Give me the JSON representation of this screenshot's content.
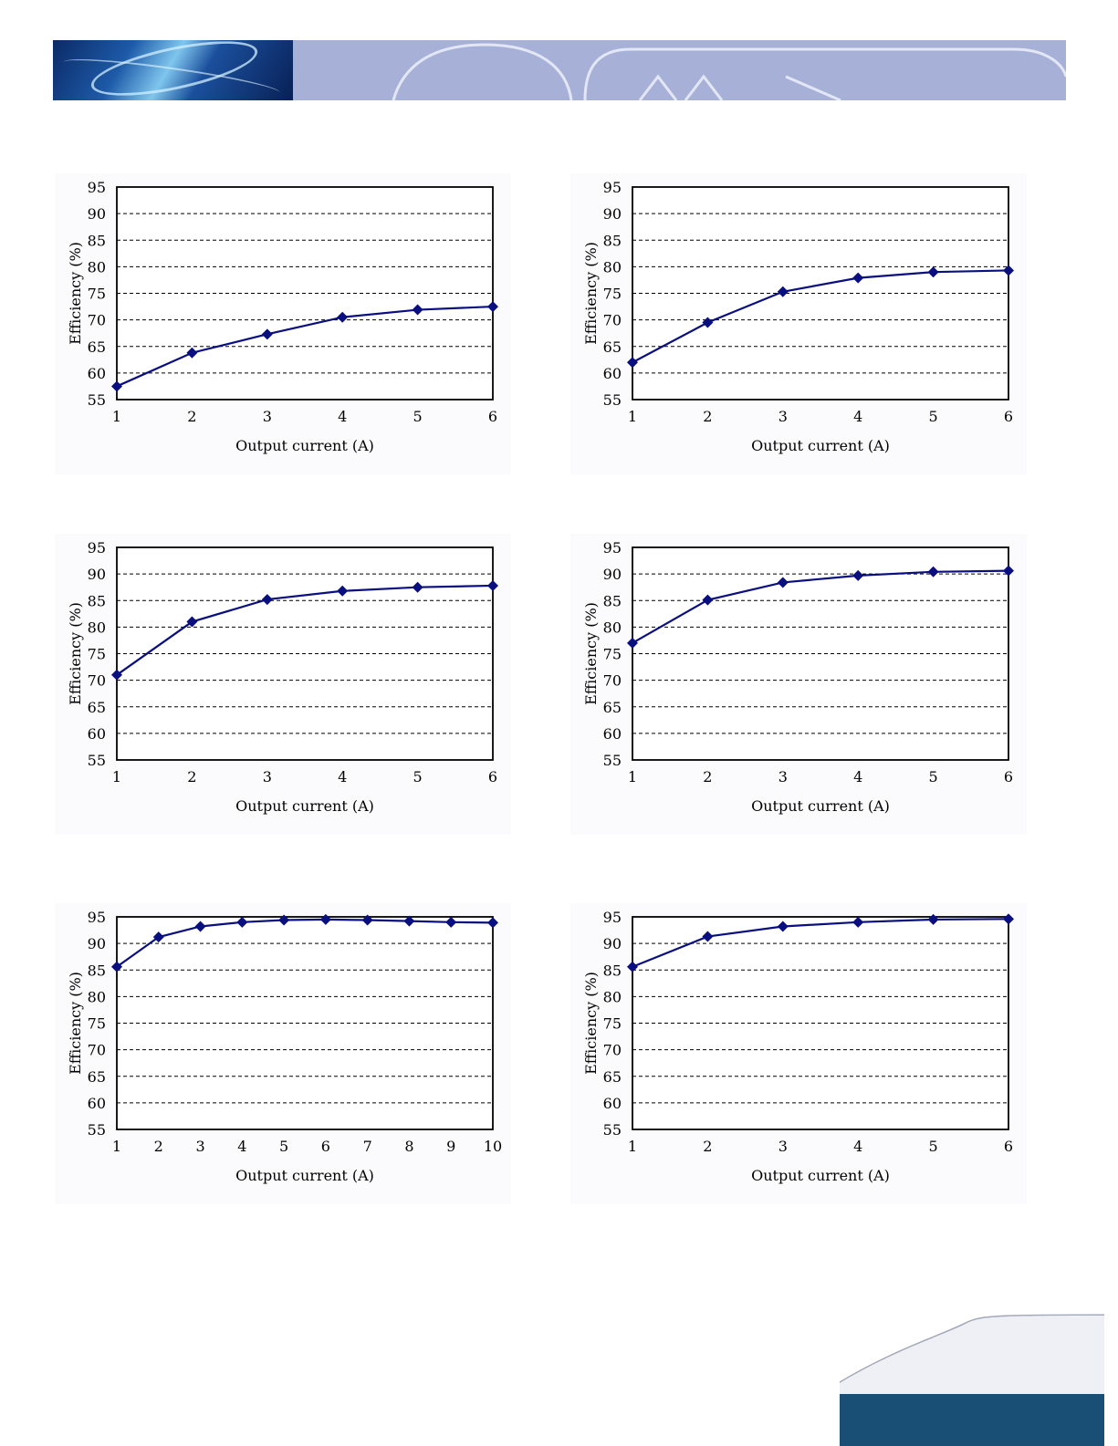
{
  "colors": {
    "banner": "#a7b1d8",
    "banner_line": "#e3e7f5",
    "series": "#0a0f80",
    "footer_bar": "#1a4f75"
  },
  "chart_data": [
    {
      "type": "line",
      "xlabel": "Output current (A)",
      "ylabel": "Efficiency (%)",
      "xlim": [
        1,
        6
      ],
      "ylim": [
        55,
        95
      ],
      "xticks": [
        1,
        2,
        3,
        4,
        5,
        6
      ],
      "yticks": [
        55,
        60,
        65,
        70,
        75,
        80,
        85,
        90,
        95
      ],
      "grid": "horizontal-dashed",
      "x": [
        1,
        2,
        3,
        4,
        5,
        6
      ],
      "series": [
        {
          "values": [
            57.5,
            63.8,
            67.3,
            70.5,
            71.9,
            72.5
          ]
        }
      ]
    },
    {
      "type": "line",
      "xlabel": "Output current (A)",
      "ylabel": "Efficiency (%)",
      "xlim": [
        1,
        6
      ],
      "ylim": [
        55,
        95
      ],
      "xticks": [
        1,
        2,
        3,
        4,
        5,
        6
      ],
      "yticks": [
        55,
        60,
        65,
        70,
        75,
        80,
        85,
        90,
        95
      ],
      "grid": "horizontal-dashed",
      "x": [
        1,
        2,
        3,
        4,
        5,
        6
      ],
      "series": [
        {
          "values": [
            62.0,
            69.5,
            75.3,
            77.9,
            79.0,
            79.3
          ]
        }
      ]
    },
    {
      "type": "line",
      "xlabel": "Output current (A)",
      "ylabel": "Efficiency (%)",
      "xlim": [
        1,
        6
      ],
      "ylim": [
        55,
        95
      ],
      "xticks": [
        1,
        2,
        3,
        4,
        5,
        6
      ],
      "yticks": [
        55,
        60,
        65,
        70,
        75,
        80,
        85,
        90,
        95
      ],
      "grid": "horizontal-dashed",
      "x": [
        1,
        2,
        3,
        4,
        5,
        6
      ],
      "series": [
        {
          "values": [
            71.0,
            81.0,
            85.2,
            86.8,
            87.5,
            87.8
          ]
        }
      ]
    },
    {
      "type": "line",
      "xlabel": "Output current (A)",
      "ylabel": "Efficiency (%)",
      "xlim": [
        1,
        6
      ],
      "ylim": [
        55,
        95
      ],
      "xticks": [
        1,
        2,
        3,
        4,
        5,
        6
      ],
      "yticks": [
        55,
        60,
        65,
        70,
        75,
        80,
        85,
        90,
        95
      ],
      "grid": "horizontal-dashed",
      "x": [
        1,
        2,
        3,
        4,
        5,
        6
      ],
      "series": [
        {
          "values": [
            77.0,
            85.1,
            88.4,
            89.7,
            90.4,
            90.6
          ]
        }
      ]
    },
    {
      "type": "line",
      "xlabel": "Output current (A)",
      "ylabel": "Efficiency (%)",
      "xlim": [
        1,
        10
      ],
      "ylim": [
        55,
        95
      ],
      "xticks": [
        1,
        2,
        3,
        4,
        5,
        6,
        7,
        8,
        9,
        10
      ],
      "yticks": [
        55,
        60,
        65,
        70,
        75,
        80,
        85,
        90,
        95
      ],
      "grid": "horizontal-dashed",
      "x": [
        1,
        2,
        3,
        4,
        5,
        6,
        7,
        8,
        9,
        10
      ],
      "series": [
        {
          "values": [
            85.6,
            91.2,
            93.2,
            94.0,
            94.4,
            94.5,
            94.4,
            94.2,
            94.0,
            93.9
          ]
        }
      ]
    },
    {
      "type": "line",
      "xlabel": "Output current (A)",
      "ylabel": "Efficiency (%)",
      "xlim": [
        1,
        6
      ],
      "ylim": [
        55,
        95
      ],
      "xticks": [
        1,
        2,
        3,
        4,
        5,
        6
      ],
      "yticks": [
        55,
        60,
        65,
        70,
        75,
        80,
        85,
        90,
        95
      ],
      "grid": "horizontal-dashed",
      "x": [
        1,
        2,
        3,
        4,
        5,
        6
      ],
      "series": [
        {
          "values": [
            85.6,
            91.3,
            93.2,
            94.0,
            94.5,
            94.6
          ]
        }
      ]
    }
  ]
}
